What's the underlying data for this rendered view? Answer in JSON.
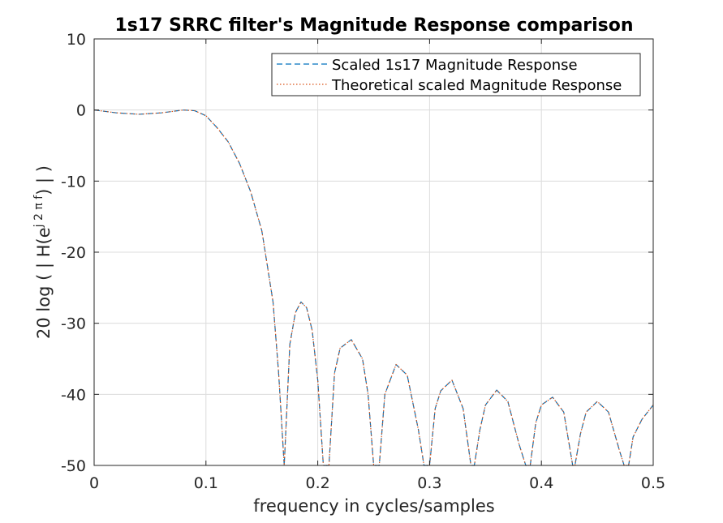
{
  "chart_data": {
    "type": "line",
    "title": "1s17 SRRC filter's Magnitude Response comparison",
    "xlabel": "frequency in cycles/samples",
    "ylabel": {
      "prefix": "20  log ( | H(e",
      "superscript": "j 2 π f",
      "suffix": ") | )"
    },
    "xlim": [
      0,
      0.5
    ],
    "ylim": [
      -50,
      10
    ],
    "xticks": [
      0,
      0.1,
      0.2,
      0.3,
      0.4,
      0.5
    ],
    "xtick_labels": [
      "0",
      "0.1",
      "0.2",
      "0.3",
      "0.4",
      "0.5"
    ],
    "yticks": [
      -50,
      -40,
      -30,
      -20,
      -10,
      0,
      10
    ],
    "ytick_labels": [
      "-50",
      "-40",
      "-30",
      "-20",
      "-10",
      "0",
      "10"
    ],
    "grid": true,
    "legend_position": "top-right",
    "series": [
      {
        "name": "Scaled 1s17 Magnitude Response",
        "color": "#0072BD",
        "dash": "dashed",
        "x": [
          0,
          0.02,
          0.04,
          0.06,
          0.08,
          0.09,
          0.1,
          0.11,
          0.12,
          0.13,
          0.14,
          0.15,
          0.16,
          0.165,
          0.17,
          0.175,
          0.18,
          0.185,
          0.19,
          0.195,
          0.2,
          0.205,
          0.21,
          0.215,
          0.22,
          0.23,
          0.24,
          0.245,
          0.25,
          0.255,
          0.26,
          0.27,
          0.28,
          0.29,
          0.295,
          0.3,
          0.305,
          0.31,
          0.32,
          0.33,
          0.337,
          0.34,
          0.345,
          0.35,
          0.36,
          0.37,
          0.38,
          0.386,
          0.39,
          0.395,
          0.4,
          0.41,
          0.42,
          0.428,
          0.43,
          0.435,
          0.44,
          0.45,
          0.46,
          0.47,
          0.474,
          0.478,
          0.482,
          0.49,
          0.5
        ],
        "y": [
          0,
          -0.4,
          -0.6,
          -0.4,
          0,
          -0.1,
          -0.8,
          -2.5,
          -4.5,
          -7.5,
          -11.5,
          -17,
          -27,
          -37,
          -50,
          -33,
          -28.5,
          -27,
          -27.8,
          -31,
          -38,
          -50,
          -50,
          -37,
          -33.5,
          -32.3,
          -35,
          -40,
          -50,
          -50,
          -40,
          -35.8,
          -37.3,
          -45,
          -50,
          -50,
          -42,
          -39.5,
          -38,
          -42,
          -50,
          -50,
          -45,
          -41.5,
          -39.4,
          -41,
          -47,
          -50,
          -50,
          -44,
          -41.5,
          -40.4,
          -42.5,
          -50,
          -50,
          -45.5,
          -42.5,
          -41,
          -42.5,
          -48,
          -50,
          -50,
          -46,
          -43.5,
          -41.5
        ]
      },
      {
        "name": "Theoretical scaled Magnitude Response",
        "color": "#D95319",
        "dash": "dotted",
        "x": [
          0,
          0.02,
          0.04,
          0.06,
          0.08,
          0.09,
          0.1,
          0.11,
          0.12,
          0.13,
          0.14,
          0.15,
          0.16,
          0.165,
          0.17,
          0.175,
          0.18,
          0.185,
          0.19,
          0.195,
          0.2,
          0.205,
          0.21,
          0.215,
          0.22,
          0.23,
          0.24,
          0.245,
          0.25,
          0.255,
          0.26,
          0.27,
          0.28,
          0.29,
          0.295,
          0.3,
          0.305,
          0.31,
          0.32,
          0.33,
          0.337,
          0.34,
          0.345,
          0.35,
          0.36,
          0.37,
          0.38,
          0.386,
          0.39,
          0.395,
          0.4,
          0.41,
          0.42,
          0.428,
          0.43,
          0.435,
          0.44,
          0.45,
          0.46,
          0.47,
          0.474,
          0.478,
          0.482,
          0.49,
          0.5
        ],
        "y": [
          0,
          -0.4,
          -0.6,
          -0.4,
          0,
          -0.1,
          -0.8,
          -2.5,
          -4.5,
          -7.5,
          -11.5,
          -17,
          -27,
          -37,
          -50,
          -33,
          -28.5,
          -27,
          -27.8,
          -31,
          -38,
          -50,
          -50,
          -37,
          -33.5,
          -32.3,
          -35,
          -40,
          -50,
          -50,
          -40,
          -35.8,
          -37.3,
          -45,
          -50,
          -50,
          -42,
          -39.5,
          -38,
          -42,
          -50,
          -50,
          -45,
          -41.5,
          -39.4,
          -41,
          -47,
          -50,
          -50,
          -44,
          -41.5,
          -40.4,
          -42.5,
          -50,
          -50,
          -45.5,
          -42.5,
          -41,
          -42.5,
          -48,
          -50,
          -50,
          -46,
          -43.5,
          -41.5
        ]
      }
    ]
  }
}
